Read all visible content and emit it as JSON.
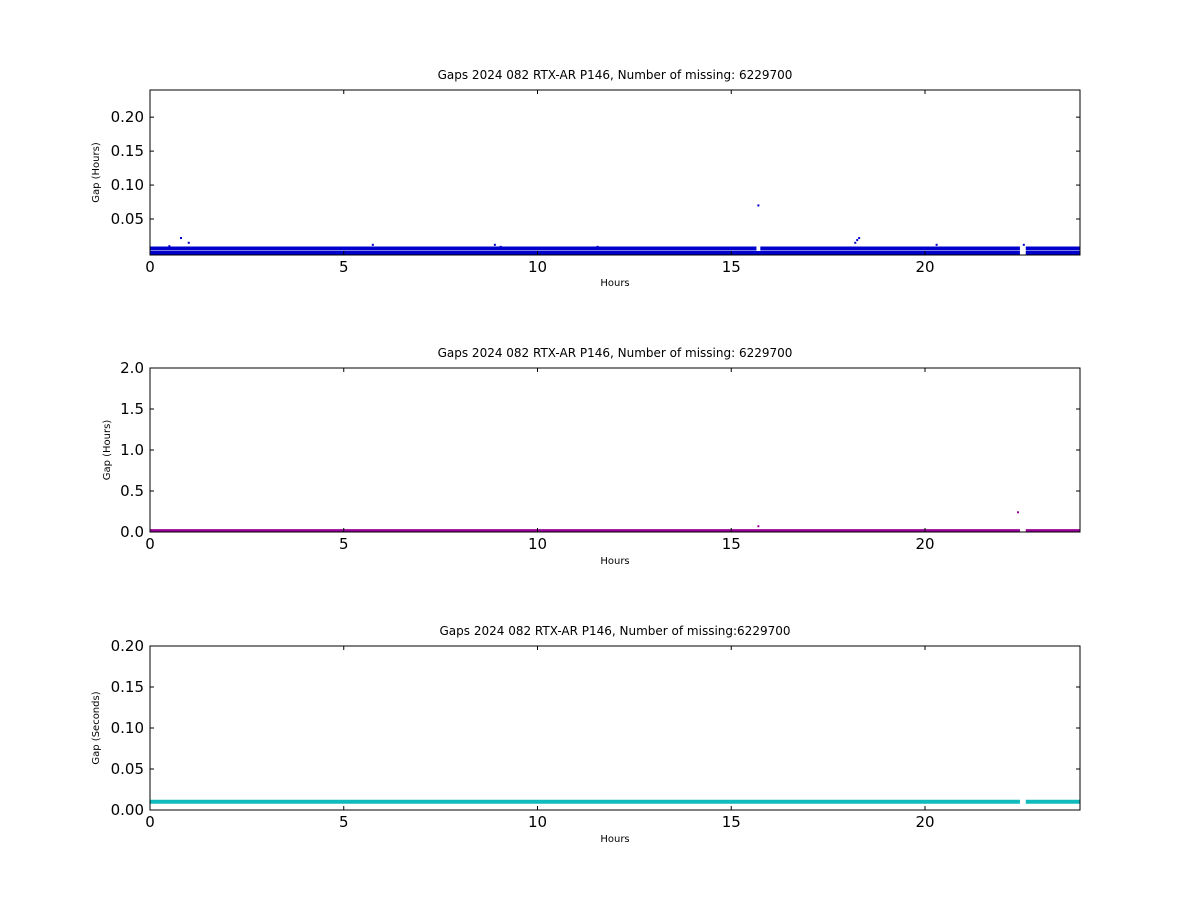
{
  "chart_data": [
    {
      "type": "scatter",
      "title": "Gaps 2024 082 RTX-AR  P146, Number of missing: 6229700",
      "xlabel": "Hours",
      "ylabel": "Gap (Hours)",
      "xlim": [
        0,
        24
      ],
      "ylim": [
        -0.003,
        0.24
      ],
      "xticks": [
        0,
        5,
        10,
        15,
        20
      ],
      "yticks": [
        0.05,
        0.1,
        0.15,
        0.2
      ],
      "ytick_labels": [
        "0.05",
        "0.10",
        "0.15",
        "0.20"
      ],
      "grid": false,
      "series": [
        {
          "color": "#0000cc",
          "bands": [
            {
              "y": 0.0,
              "x_ranges": [
                [
                  0,
                  22.45
                ],
                [
                  22.6,
                  24
                ]
              ]
            },
            {
              "y": 0.0065,
              "x_ranges": [
                [
                  0,
                  15.65
                ],
                [
                  15.75,
                  22.45
                ],
                [
                  22.6,
                  24
                ]
              ]
            }
          ],
          "points": [
            {
              "x": 0.5,
              "y": 0.01
            },
            {
              "x": 0.8,
              "y": 0.022
            },
            {
              "x": 1.0,
              "y": 0.015
            },
            {
              "x": 5.75,
              "y": 0.012
            },
            {
              "x": 8.9,
              "y": 0.012
            },
            {
              "x": 9.05,
              "y": 0.009
            },
            {
              "x": 11.55,
              "y": 0.009
            },
            {
              "x": 15.7,
              "y": 0.07
            },
            {
              "x": 18.2,
              "y": 0.015
            },
            {
              "x": 18.25,
              "y": 0.019
            },
            {
              "x": 18.3,
              "y": 0.022
            },
            {
              "x": 20.3,
              "y": 0.012
            },
            {
              "x": 22.55,
              "y": 0.012
            },
            {
              "x": 22.65,
              "y": 0.008
            }
          ]
        }
      ]
    },
    {
      "type": "scatter",
      "title": "Gaps 2024 082 RTX-AR  P146, Number of missing: 6229700",
      "xlabel": "Hours",
      "ylabel": "Gap (Hours)",
      "xlim": [
        0,
        24
      ],
      "ylim": [
        0,
        2.0
      ],
      "xticks": [
        0,
        5,
        10,
        15,
        20
      ],
      "yticks": [
        0.0,
        0.5,
        1.0,
        1.5,
        2.0
      ],
      "ytick_labels": [
        "0.0",
        "0.5",
        "1.0",
        "1.5",
        "2.0"
      ],
      "grid": false,
      "series": [
        {
          "color": "#990099",
          "bands": [
            {
              "y": 0.01,
              "x_ranges": [
                [
                  0,
                  22.45
                ],
                [
                  22.6,
                  24
                ]
              ]
            }
          ],
          "points": [
            {
              "x": 15.7,
              "y": 0.07
            },
            {
              "x": 22.4,
              "y": 0.24
            }
          ]
        }
      ]
    },
    {
      "type": "scatter",
      "title": "Gaps 2024 082 RTX-AR  P146, Number of missing:6229700",
      "xlabel": "Hours",
      "ylabel": "Gap (Seconds)",
      "xlim": [
        0,
        24
      ],
      "ylim": [
        0,
        0.2
      ],
      "xticks": [
        0,
        5,
        10,
        15,
        20
      ],
      "yticks": [
        0.0,
        0.05,
        0.1,
        0.15,
        0.2
      ],
      "ytick_labels": [
        "0.00",
        "0.05",
        "0.10",
        "0.15",
        "0.20"
      ],
      "grid": false,
      "series": [
        {
          "color": "#11bbbb",
          "bands": [
            {
              "y": 0.01,
              "x_ranges": [
                [
                  0,
                  22.45
                ],
                [
                  22.6,
                  24
                ]
              ]
            }
          ],
          "points": []
        }
      ]
    }
  ]
}
